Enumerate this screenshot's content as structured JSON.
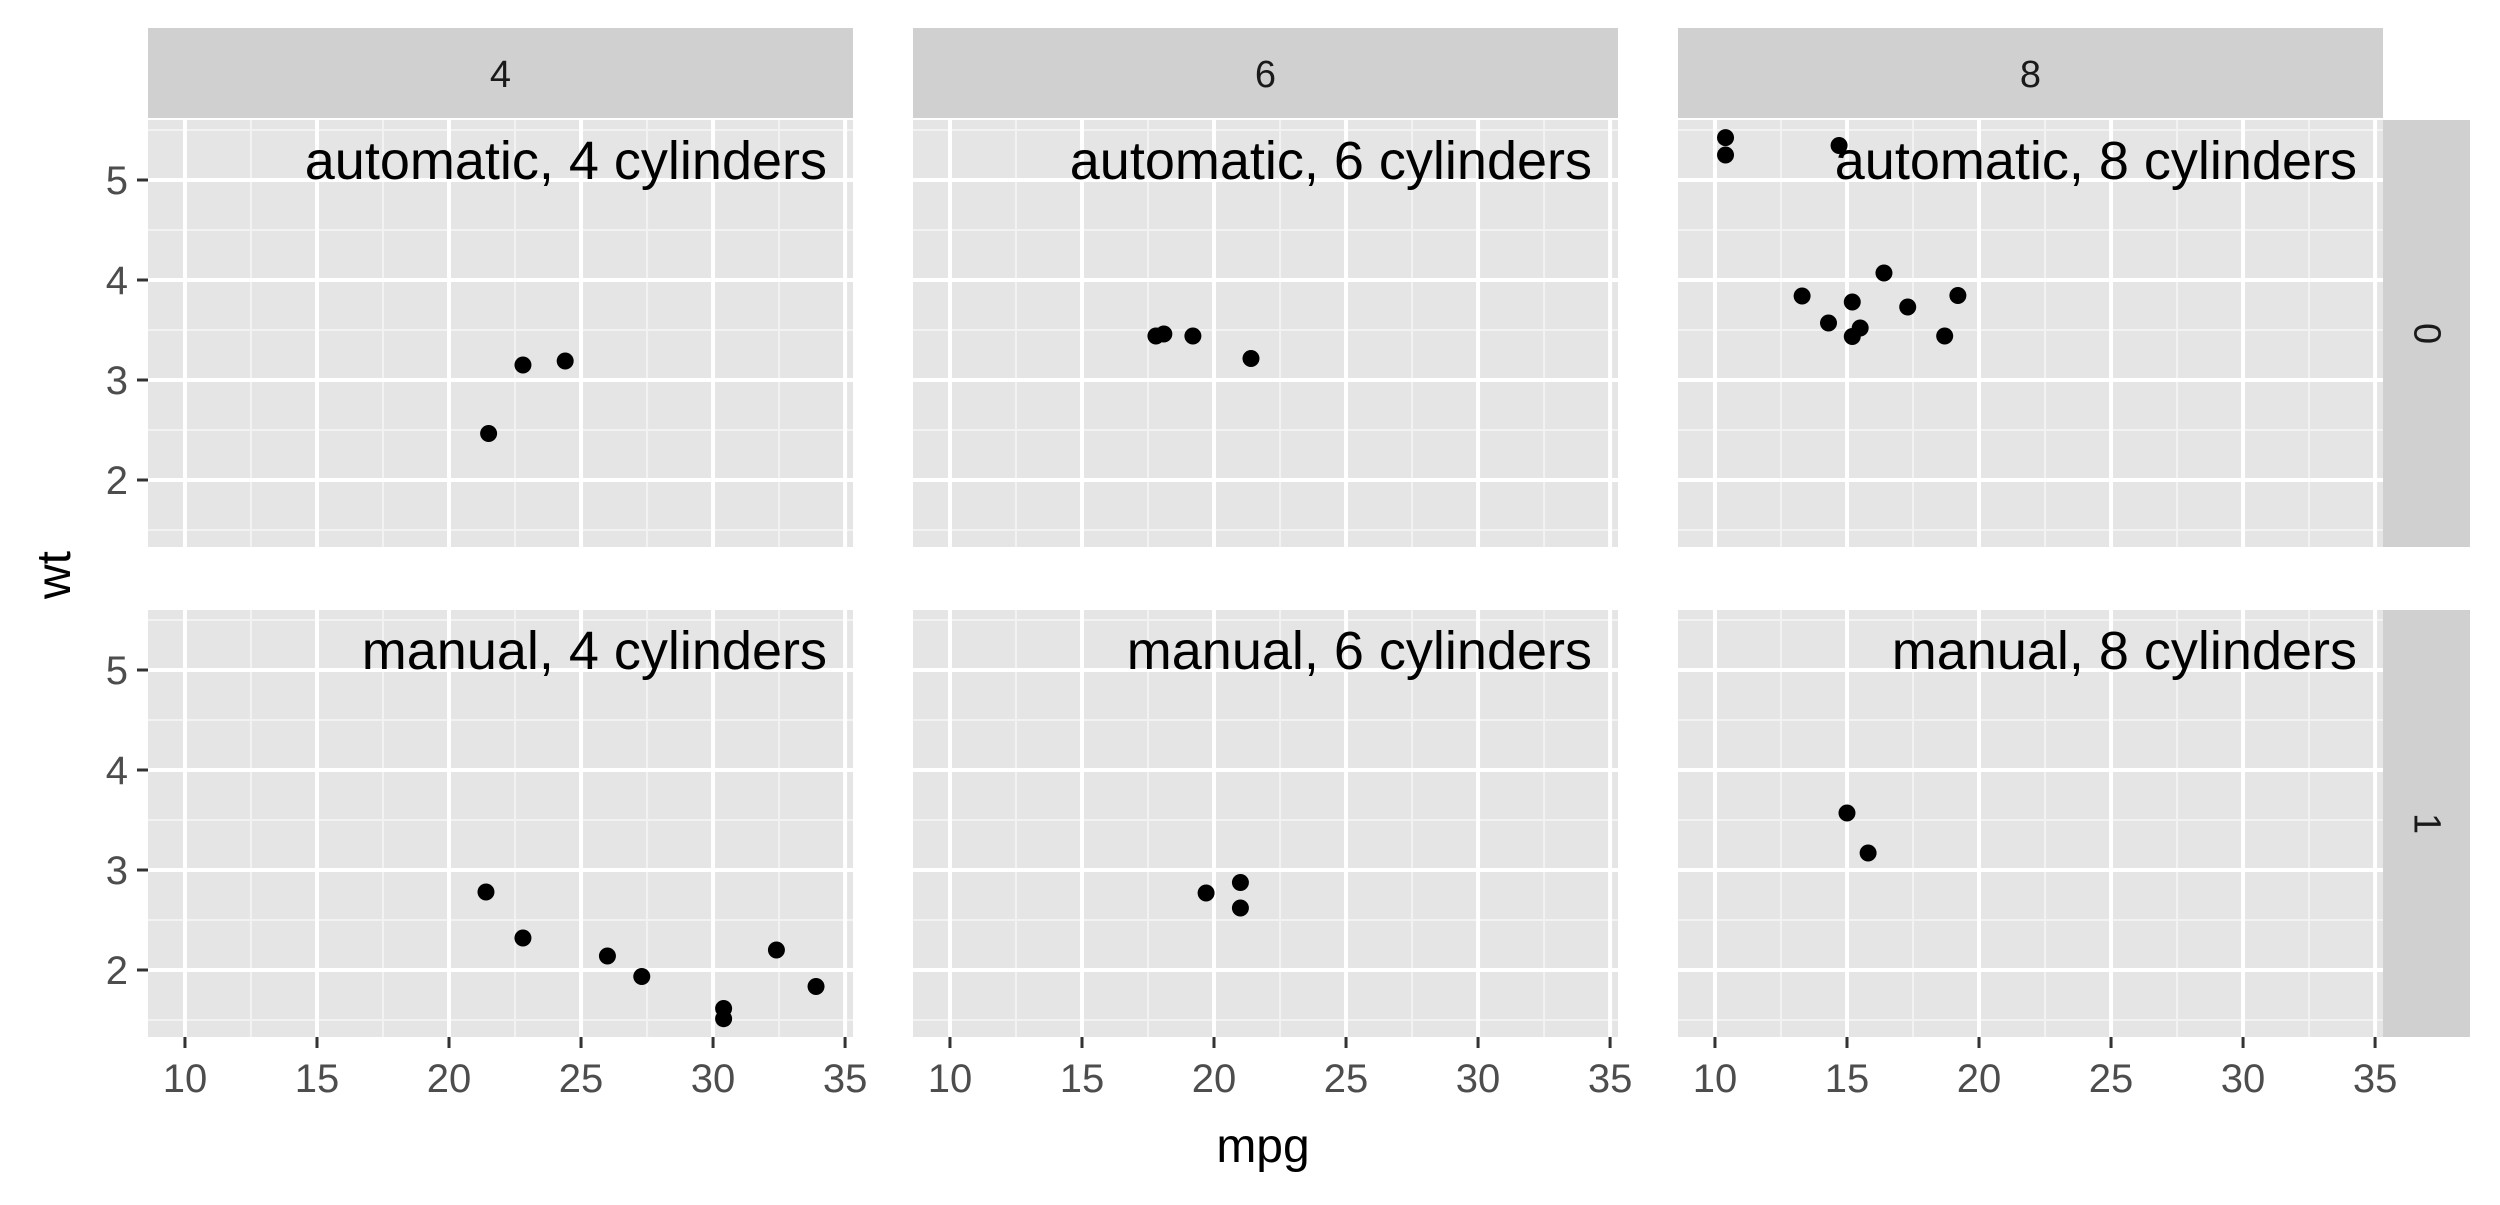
{
  "chart_data": {
    "type": "scatter",
    "xlabel": "mpg",
    "ylabel": "wt",
    "xlim": [
      8.6,
      35.3
    ],
    "ylim": [
      1.33,
      5.6
    ],
    "x_ticks": [
      10,
      15,
      20,
      25,
      30,
      35
    ],
    "x_tick_labels": [
      "10",
      "15",
      "20",
      "25",
      "30",
      "35"
    ],
    "y_ticks": [
      2,
      3,
      4,
      5
    ],
    "y_tick_labels": [
      "2",
      "3",
      "4",
      "5"
    ],
    "grid": true,
    "facet_columns": [
      "4",
      "6",
      "8"
    ],
    "facet_rows": [
      "0",
      "1"
    ],
    "panel_bg": "#e5e5e5",
    "strip_bg": "#d0d0d0",
    "point_color": "#000000",
    "panels": [
      {
        "row": 0,
        "col": 0,
        "label": "automatic, 4 cylinders",
        "points": [
          {
            "x": 21.5,
            "y": 2.465
          },
          {
            "x": 22.8,
            "y": 3.15
          },
          {
            "x": 24.4,
            "y": 3.19
          }
        ]
      },
      {
        "row": 0,
        "col": 1,
        "label": "automatic, 6 cylinders",
        "points": [
          {
            "x": 17.8,
            "y": 3.44
          },
          {
            "x": 18.1,
            "y": 3.46
          },
          {
            "x": 19.2,
            "y": 3.44
          },
          {
            "x": 21.4,
            "y": 3.215
          }
        ]
      },
      {
        "row": 0,
        "col": 2,
        "label": "automatic, 8 cylinders",
        "points": [
          {
            "x": 10.4,
            "y": 5.424
          },
          {
            "x": 10.4,
            "y": 5.25
          },
          {
            "x": 14.7,
            "y": 5.345
          },
          {
            "x": 13.3,
            "y": 3.84
          },
          {
            "x": 14.3,
            "y": 3.57
          },
          {
            "x": 15.2,
            "y": 3.78
          },
          {
            "x": 15.2,
            "y": 3.435
          },
          {
            "x": 15.5,
            "y": 3.52
          },
          {
            "x": 16.4,
            "y": 4.07
          },
          {
            "x": 17.3,
            "y": 3.73
          },
          {
            "x": 18.7,
            "y": 3.44
          },
          {
            "x": 19.2,
            "y": 3.845
          }
        ]
      },
      {
        "row": 1,
        "col": 0,
        "label": "manual, 4 cylinders",
        "points": [
          {
            "x": 21.4,
            "y": 2.78
          },
          {
            "x": 22.8,
            "y": 2.32
          },
          {
            "x": 26.0,
            "y": 2.14
          },
          {
            "x": 27.3,
            "y": 1.935
          },
          {
            "x": 30.4,
            "y": 1.615
          },
          {
            "x": 30.4,
            "y": 1.513
          },
          {
            "x": 32.4,
            "y": 2.2
          },
          {
            "x": 33.9,
            "y": 1.835
          }
        ]
      },
      {
        "row": 1,
        "col": 1,
        "label": "manual, 6 cylinders",
        "points": [
          {
            "x": 19.7,
            "y": 2.77
          },
          {
            "x": 21.0,
            "y": 2.875
          },
          {
            "x": 21.0,
            "y": 2.62
          }
        ]
      },
      {
        "row": 1,
        "col": 2,
        "label": "manual, 8 cylinders",
        "points": [
          {
            "x": 15.0,
            "y": 3.57
          },
          {
            "x": 15.8,
            "y": 3.17
          }
        ]
      }
    ]
  }
}
